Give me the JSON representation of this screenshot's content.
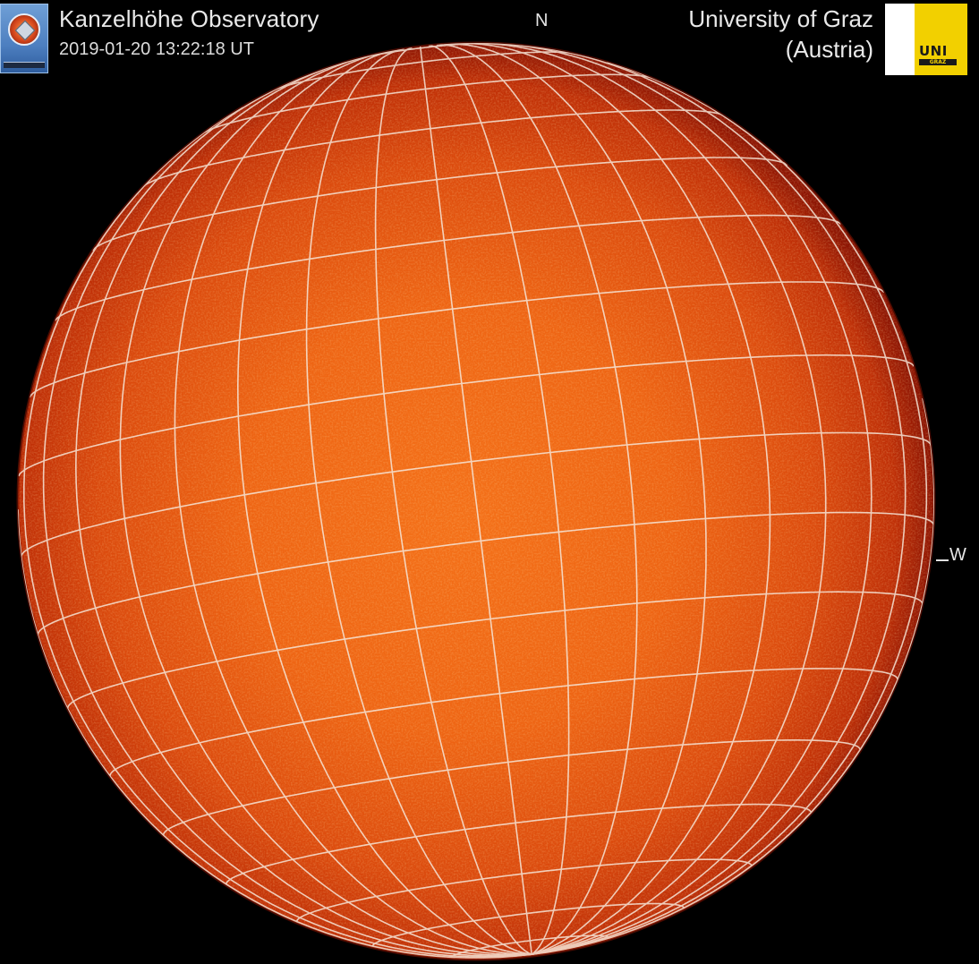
{
  "header": {
    "observatory_name": "Kanzelhöhe Observatory",
    "timestamp": "2019-01-20 13:22:18 UT",
    "university_name": "University of Graz",
    "university_country": "(Austria)"
  },
  "logos": {
    "observatory_logo": "kanzelhoehe-emblem",
    "university_logo_text": "UNI",
    "university_logo_subtext": "GRAZ"
  },
  "compass": {
    "north_label": "N",
    "west_label": "W"
  },
  "image": {
    "subject": "full-disk solar image",
    "colors": {
      "background": "#000000",
      "disk_center": "#f26a16",
      "disk_mid": "#e14a0c",
      "disk_limb": "#9e1704",
      "grid_lines": "#f7e9dc"
    }
  }
}
